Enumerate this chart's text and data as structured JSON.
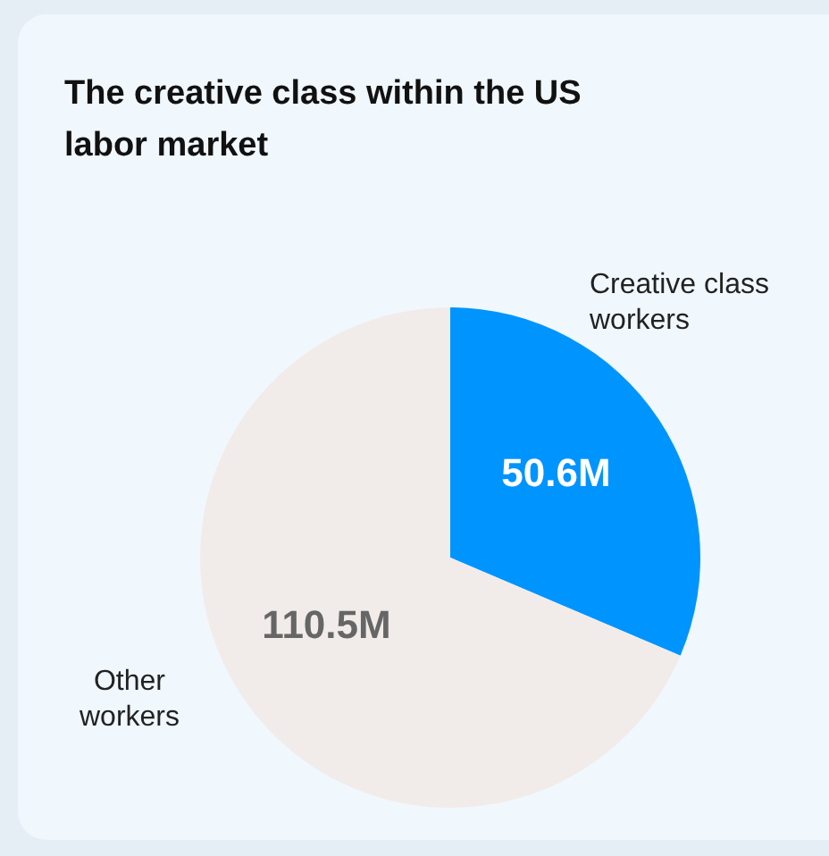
{
  "chart_data": {
    "type": "pie",
    "title": "The creative class within the US labor market",
    "categories": [
      "Creative class workers",
      "Other workers"
    ],
    "values": [
      50.6,
      110.5
    ],
    "colors": [
      "#0094ff",
      "#f1ece9"
    ],
    "value_labels": [
      "50.6M",
      "110.5M"
    ]
  }
}
